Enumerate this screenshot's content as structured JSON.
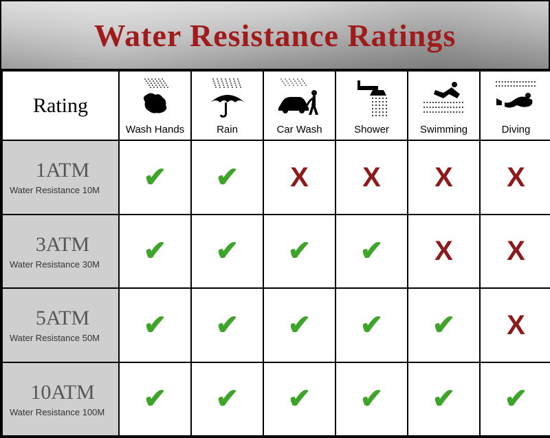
{
  "title": "Water Resistance Ratings",
  "title_color": "#a01b1b",
  "title_fontsize": 46,
  "header_bg_gradient": [
    "#d8d8d8",
    "#909090"
  ],
  "rating_header_label": "Rating",
  "rating_header_fontsize": 30,
  "activity_label_fontsize": 15,
  "atm_fontsize": 30,
  "atm_color": "#555555",
  "sub_fontsize": 13,
  "check_color": "#3fa52a",
  "cross_color": "#8e1b1b",
  "mark_fontsize": 40,
  "check_glyph": "✔",
  "cross_glyph": "X",
  "rating_cell_bg": "#cfcfcf",
  "border_color": "#000000",
  "activities": [
    {
      "id": "wash-hands",
      "label": "Wash Hands",
      "icon": "wash-hands"
    },
    {
      "id": "rain",
      "label": "Rain",
      "icon": "rain"
    },
    {
      "id": "car-wash",
      "label": "Car Wash",
      "icon": "car-wash"
    },
    {
      "id": "shower",
      "label": "Shower",
      "icon": "shower"
    },
    {
      "id": "swimming",
      "label": "Swimming",
      "icon": "swimming"
    },
    {
      "id": "diving",
      "label": "Diving",
      "icon": "diving"
    }
  ],
  "ratings": [
    {
      "atm": "1ATM",
      "sub": "Water Resistance 10M",
      "marks": [
        "check",
        "check",
        "cross",
        "cross",
        "cross",
        "cross"
      ]
    },
    {
      "atm": "3ATM",
      "sub": "Water Resistance 30M",
      "marks": [
        "check",
        "check",
        "check",
        "check",
        "cross",
        "cross"
      ]
    },
    {
      "atm": "5ATM",
      "sub": "Water Resistance 50M",
      "marks": [
        "check",
        "check",
        "check",
        "check",
        "check",
        "cross"
      ]
    },
    {
      "atm": "10ATM",
      "sub": "Water Resistance 100M",
      "marks": [
        "check",
        "check",
        "check",
        "check",
        "check",
        "check"
      ]
    }
  ]
}
